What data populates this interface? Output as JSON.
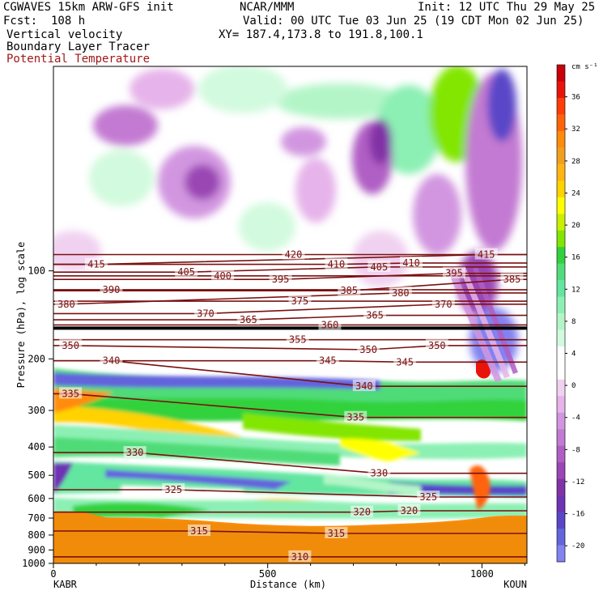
{
  "header": {
    "model": "CGWAVES 15km ARW-GFS init",
    "forecast": "Fcst:  108 h",
    "field1": "Vertical velocity",
    "field2": "Boundary Layer Tracer",
    "field3": "Potential Temperature",
    "org": "NCAR/MMM",
    "init": "Init: 12 UTC Thu 29 May 25",
    "valid": "Valid: 00 UTC Tue 03 Jun 25 (19 CDT Mon 02 Jun 25)",
    "xy": "XY= 187.4,173.8 to 191.8,100.1"
  },
  "colors": {
    "theta": "#7a1010",
    "surface": "#f08c0a",
    "bg": "#ffffff"
  },
  "chart_data": {
    "type": "heatmap",
    "title": "Vertical velocity",
    "xlabel": "Distance (km)",
    "ylabel": "Pressure (hPa), log scale",
    "x_ticks": [
      0,
      500,
      1000
    ],
    "x_endpoints": {
      "left": "KABR",
      "right": "KOUN"
    },
    "xlim": [
      0,
      1105
    ],
    "y_ticks": [
      100,
      200,
      300,
      400,
      500,
      600,
      700,
      800,
      900,
      1000
    ],
    "ylim": [
      1000,
      20
    ],
    "y_scale": "log",
    "colorbar": {
      "units": "cm s⁻¹",
      "tick_labels": [
        36,
        32,
        28,
        24,
        20,
        16,
        12,
        8,
        4,
        0,
        -4,
        -8,
        -12,
        -16,
        -20
      ],
      "colors": [
        "#c8000a",
        "#e8140a",
        "#ff3c0a",
        "#ff640a",
        "#ff8c0a",
        "#f0a01e",
        "#ffb414",
        "#ffd200",
        "#ffff00",
        "#c8f000",
        "#82e600",
        "#32d23c",
        "#50dc78",
        "#64e6a0",
        "#8cf0b4",
        "#b4f5c8",
        "#d2fade",
        "#ffffff",
        "#ffffff",
        "#f0d2f0",
        "#e6b4ea",
        "#d296e0",
        "#c37ad2",
        "#b05ec4",
        "#9a46b4",
        "#8232a6",
        "#6e32b4",
        "#5a46c8",
        "#6464dc",
        "#8282f0"
      ]
    },
    "theta_labels": [
      {
        "v": "420",
        "x": 560,
        "p": 88
      },
      {
        "v": "415",
        "x": 100,
        "p": 95
      },
      {
        "v": "415",
        "x": 1010,
        "p": 88
      },
      {
        "v": "410",
        "x": 660,
        "p": 95
      },
      {
        "v": "410",
        "x": 835,
        "p": 94
      },
      {
        "v": "405",
        "x": 310,
        "p": 101
      },
      {
        "v": "405",
        "x": 760,
        "p": 97
      },
      {
        "v": "400",
        "x": 395,
        "p": 104
      },
      {
        "v": "395",
        "x": 530,
        "p": 107
      },
      {
        "v": "395",
        "x": 935,
        "p": 102
      },
      {
        "v": "390",
        "x": 135,
        "p": 116
      },
      {
        "v": "385",
        "x": 690,
        "p": 117
      },
      {
        "v": "385",
        "x": 1070,
        "p": 107
      },
      {
        "v": "380",
        "x": 30,
        "p": 130
      },
      {
        "v": "380",
        "x": 810,
        "p": 119
      },
      {
        "v": "375",
        "x": 575,
        "p": 127
      },
      {
        "v": "370",
        "x": 355,
        "p": 140
      },
      {
        "v": "370",
        "x": 910,
        "p": 130
      },
      {
        "v": "365",
        "x": 455,
        "p": 147
      },
      {
        "v": "365",
        "x": 750,
        "p": 142
      },
      {
        "v": "360",
        "x": 645,
        "p": 153
      },
      {
        "v": "355",
        "x": 570,
        "p": 172
      },
      {
        "v": "350",
        "x": 40,
        "p": 180
      },
      {
        "v": "350",
        "x": 735,
        "p": 186
      },
      {
        "v": "350",
        "x": 895,
        "p": 180
      },
      {
        "v": "345",
        "x": 640,
        "p": 203
      },
      {
        "v": "345",
        "x": 820,
        "p": 205
      },
      {
        "v": "340",
        "x": 135,
        "p": 203
      },
      {
        "v": "340",
        "x": 725,
        "p": 248
      },
      {
        "v": "335",
        "x": 40,
        "p": 263
      },
      {
        "v": "335",
        "x": 705,
        "p": 317
      },
      {
        "v": "330",
        "x": 190,
        "p": 418
      },
      {
        "v": "330",
        "x": 760,
        "p": 492
      },
      {
        "v": "325",
        "x": 280,
        "p": 560
      },
      {
        "v": "325",
        "x": 875,
        "p": 593
      },
      {
        "v": "320",
        "x": 720,
        "p": 668
      },
      {
        "v": "320",
        "x": 830,
        "p": 661
      },
      {
        "v": "315",
        "x": 340,
        "p": 775
      },
      {
        "v": "315",
        "x": 660,
        "p": 790
      },
      {
        "v": "310",
        "x": 575,
        "p": 950
      }
    ]
  }
}
